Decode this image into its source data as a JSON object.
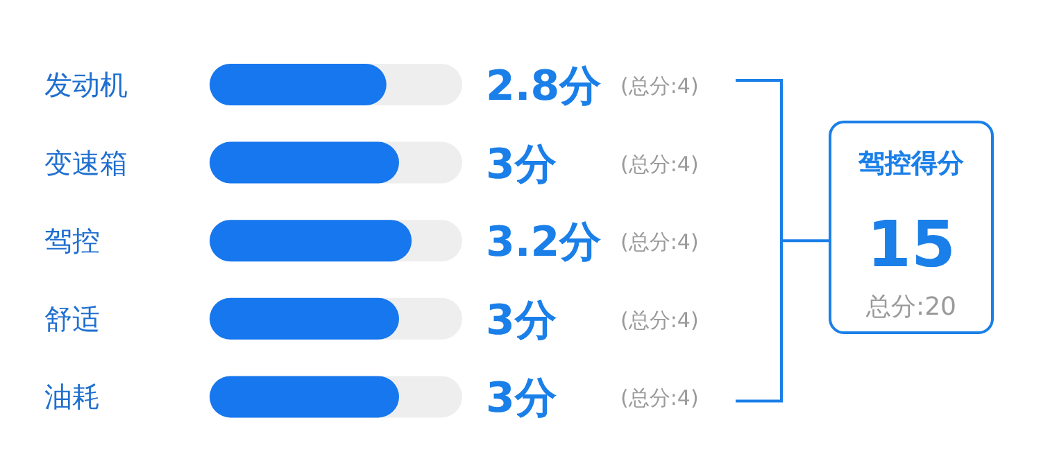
{
  "chart_data": {
    "type": "bar",
    "orientation": "horizontal",
    "categories": [
      "发动机",
      "变速箱",
      "驾控",
      "舒适",
      "油耗"
    ],
    "values": [
      2.8,
      3,
      3.2,
      3,
      3
    ],
    "value_labels": [
      "2.8分",
      "3分",
      "3.2分",
      "3分",
      "3分"
    ],
    "color": "#1677ee",
    "xlim": [
      0,
      4
    ],
    "annotations": [
      "(总分:4)",
      "(总分:4)",
      "(总分:4)",
      "(总分:4)",
      "(总分:4)",
      "驾控得分",
      "15",
      "总分:20"
    ]
  }
}
